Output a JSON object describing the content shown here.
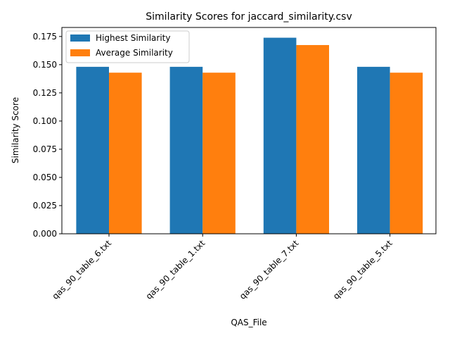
{
  "chart_data": {
    "type": "bar",
    "title": "Similarity Scores for jaccard_similarity.csv",
    "xlabel": "QAS_File",
    "ylabel": "Similarity Score",
    "categories": [
      "qas_90_table_6.txt",
      "qas_90_table_1.txt",
      "qas_90_table_7.txt",
      "qas_90_table_5.txt"
    ],
    "series": [
      {
        "name": "Highest Similarity",
        "color": "#1f77b4",
        "values": [
          0.1481,
          0.1481,
          0.1739,
          0.1481
        ]
      },
      {
        "name": "Average Similarity",
        "color": "#ff7f0e",
        "values": [
          0.1429,
          0.1429,
          0.1674,
          0.1429
        ]
      }
    ],
    "ylim": [
      0,
      0.183
    ],
    "yticks": [
      "0.000",
      "0.025",
      "0.050",
      "0.075",
      "0.100",
      "0.125",
      "0.150",
      "0.175"
    ],
    "grid": false,
    "legend_position": "upper-left"
  }
}
